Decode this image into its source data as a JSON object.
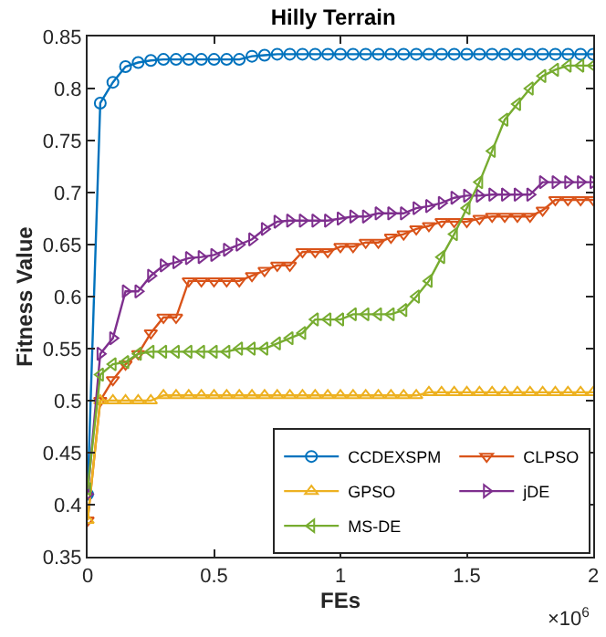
{
  "chart_data": {
    "type": "line",
    "title": "Hilly Terrain",
    "xlabel": "FEs",
    "ylabel": "Fitness Value",
    "annotations": [
      "×10$^{6}$"
    ],
    "x": [
      0,
      0.05,
      0.1,
      0.15,
      0.2,
      0.25,
      0.3,
      0.35,
      0.4,
      0.45,
      0.5,
      0.55,
      0.6,
      0.65,
      0.7,
      0.75,
      0.8,
      0.85,
      0.9,
      0.95,
      1.0,
      1.05,
      1.1,
      1.15,
      1.2,
      1.25,
      1.3,
      1.35,
      1.4,
      1.45,
      1.5,
      1.55,
      1.6,
      1.65,
      1.7,
      1.75,
      1.8,
      1.85,
      1.9,
      1.95,
      2.0
    ],
    "series": [
      {
        "name": "CCDEXSPM",
        "color": "#0072bd",
        "marker": "circle",
        "values": [
          0.41,
          0.786,
          0.806,
          0.821,
          0.825,
          0.827,
          0.828,
          0.828,
          0.828,
          0.828,
          0.828,
          0.828,
          0.828,
          0.831,
          0.832,
          0.833,
          0.833,
          0.833,
          0.833,
          0.833,
          0.833,
          0.833,
          0.833,
          0.833,
          0.833,
          0.833,
          0.833,
          0.833,
          0.833,
          0.833,
          0.833,
          0.833,
          0.833,
          0.833,
          0.833,
          0.833,
          0.833,
          0.833,
          0.833,
          0.833,
          0.833
        ]
      },
      {
        "name": "CLPSO",
        "color": "#d95319",
        "marker": "triangle-down",
        "values": [
          0.385,
          0.5,
          0.52,
          0.535,
          0.545,
          0.565,
          0.58,
          0.58,
          0.615,
          0.615,
          0.615,
          0.615,
          0.615,
          0.62,
          0.625,
          0.63,
          0.63,
          0.643,
          0.643,
          0.643,
          0.648,
          0.648,
          0.652,
          0.652,
          0.657,
          0.66,
          0.665,
          0.668,
          0.672,
          0.672,
          0.672,
          0.675,
          0.677,
          0.677,
          0.677,
          0.677,
          0.683,
          0.693,
          0.693,
          0.693,
          0.693
        ]
      },
      {
        "name": "GPSO",
        "color": "#edb120",
        "marker": "triangle-up",
        "values": [
          0.385,
          0.5,
          0.5,
          0.5,
          0.5,
          0.5,
          0.505,
          0.505,
          0.505,
          0.505,
          0.505,
          0.505,
          0.505,
          0.505,
          0.505,
          0.505,
          0.505,
          0.505,
          0.505,
          0.505,
          0.505,
          0.505,
          0.505,
          0.505,
          0.505,
          0.505,
          0.505,
          0.508,
          0.508,
          0.508,
          0.508,
          0.508,
          0.508,
          0.508,
          0.508,
          0.508,
          0.508,
          0.508,
          0.508,
          0.508,
          0.508
        ]
      },
      {
        "name": "jDE",
        "color": "#7e2f8e",
        "marker": "triangle-right",
        "values": [
          0.41,
          0.545,
          0.56,
          0.605,
          0.605,
          0.62,
          0.63,
          0.633,
          0.637,
          0.638,
          0.64,
          0.645,
          0.65,
          0.655,
          0.665,
          0.672,
          0.673,
          0.673,
          0.673,
          0.673,
          0.675,
          0.677,
          0.677,
          0.68,
          0.68,
          0.68,
          0.685,
          0.687,
          0.69,
          0.695,
          0.697,
          0.697,
          0.698,
          0.698,
          0.698,
          0.698,
          0.71,
          0.71,
          0.71,
          0.71,
          0.71
        ]
      },
      {
        "name": "MS-DE",
        "color": "#77ac30",
        "marker": "triangle-left",
        "values": [
          0.415,
          0.525,
          0.535,
          0.537,
          0.545,
          0.547,
          0.547,
          0.547,
          0.547,
          0.547,
          0.547,
          0.547,
          0.55,
          0.55,
          0.55,
          0.555,
          0.56,
          0.565,
          0.578,
          0.578,
          0.578,
          0.583,
          0.583,
          0.583,
          0.583,
          0.587,
          0.6,
          0.615,
          0.638,
          0.66,
          0.685,
          0.71,
          0.74,
          0.77,
          0.785,
          0.8,
          0.812,
          0.818,
          0.822,
          0.822,
          0.822
        ]
      }
    ],
    "xlim": [
      0,
      2
    ],
    "xticks": [
      0,
      0.5,
      1,
      1.5,
      2
    ],
    "ylim": [
      0.35,
      0.85
    ],
    "yticks": [
      0.35,
      0.4,
      0.45,
      0.5,
      0.55,
      0.6,
      0.65,
      0.7,
      0.75,
      0.8,
      0.85
    ],
    "legend": "bottom right",
    "line_style": "solid"
  }
}
